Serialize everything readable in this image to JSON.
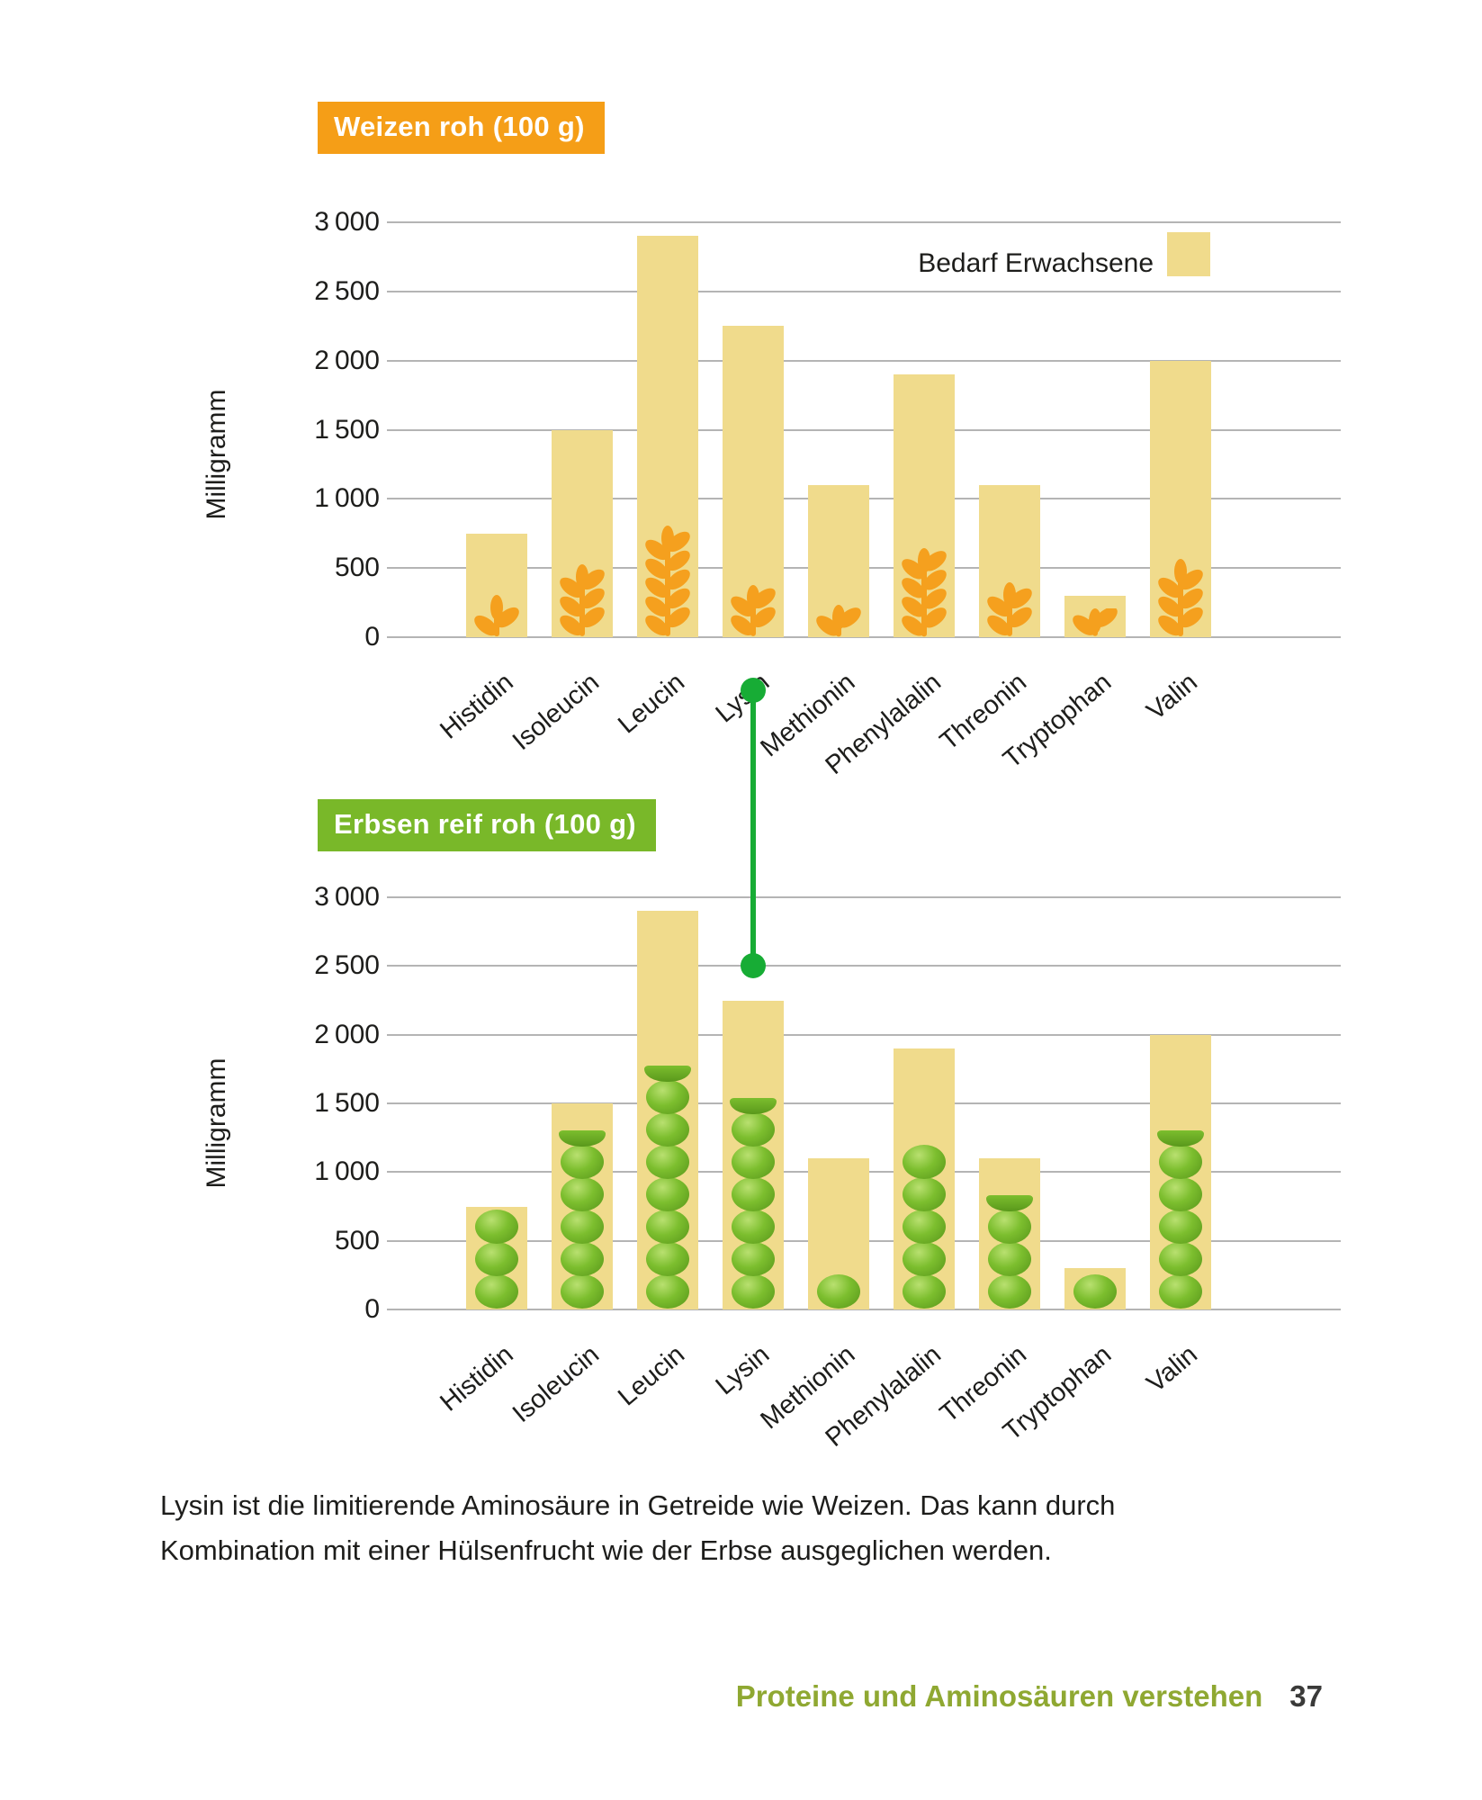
{
  "page": {
    "caption_lines": [
      "Lysin ist die limitierende Aminosäure in Getreide wie Weizen. Das kann durch",
      "Kombination mit einer Hülsenfrucht wie der Erbse ausgeglichen werden."
    ],
    "footer": {
      "title": "Proteine und Aminosäuren verstehen",
      "page_number": "37"
    }
  },
  "colors": {
    "orange_header": "#F59E17",
    "green_header": "#79B829",
    "bar_fill": "#F0DB8C",
    "wheat": "#F5A01E",
    "pea_light": "#B9E070",
    "pea_main": "#7CBE2E",
    "pea_dark": "#59981B",
    "connector": "#17AC35",
    "grid": "#B4B4B4",
    "text": "#1D1D1B",
    "olive": "#8FA832"
  },
  "connector": {
    "links_category": "Lysin",
    "category_index": 3
  },
  "chart_data": [
    {
      "type": "bar",
      "title": "Weizen roh (100 g)",
      "ylabel": "Milligramm",
      "ylim": [
        0,
        3000
      ],
      "yticks": [
        3000,
        2500,
        2000,
        1500,
        1000,
        500,
        0
      ],
      "grid": true,
      "legend": {
        "label": "Bedarf Erwachsene",
        "position": "top-right"
      },
      "categories": [
        "Histidin",
        "Isoleucin",
        "Leucin",
        "Lysin",
        "Methionin",
        "Phenylalalin",
        "Threonin",
        "Tryptophan",
        "Valin"
      ],
      "series": [
        {
          "name": "Bedarf Erwachsene",
          "style": "pale-yellow-bar",
          "values": [
            750,
            1500,
            2900,
            2250,
            1100,
            1900,
            1100,
            300,
            2000
          ]
        },
        {
          "name": "Weizen roh (100 g)",
          "style": "wheat-ear-pictogram",
          "values": [
            300,
            520,
            800,
            370,
            230,
            640,
            390,
            200,
            560
          ]
        }
      ]
    },
    {
      "type": "bar",
      "title": "Erbsen reif roh (100 g)",
      "ylabel": "Milligramm",
      "ylim": [
        0,
        3000
      ],
      "yticks": [
        3000,
        2500,
        2000,
        1500,
        1000,
        500,
        0
      ],
      "grid": true,
      "legend": null,
      "categories": [
        "Histidin",
        "Isoleucin",
        "Leucin",
        "Lysin",
        "Methionin",
        "Phenylalalin",
        "Threonin",
        "Tryptophan",
        "Valin"
      ],
      "series": [
        {
          "name": "Bedarf Erwachsene",
          "style": "pale-yellow-bar",
          "values": [
            750,
            1500,
            2900,
            2250,
            1100,
            1900,
            1100,
            300,
            2000
          ]
        },
        {
          "name": "Erbsen reif roh (100 g)",
          "style": "pea-stack-pictogram",
          "values": [
            750,
            1300,
            1800,
            1600,
            250,
            1250,
            900,
            250,
            1300
          ]
        }
      ]
    }
  ]
}
